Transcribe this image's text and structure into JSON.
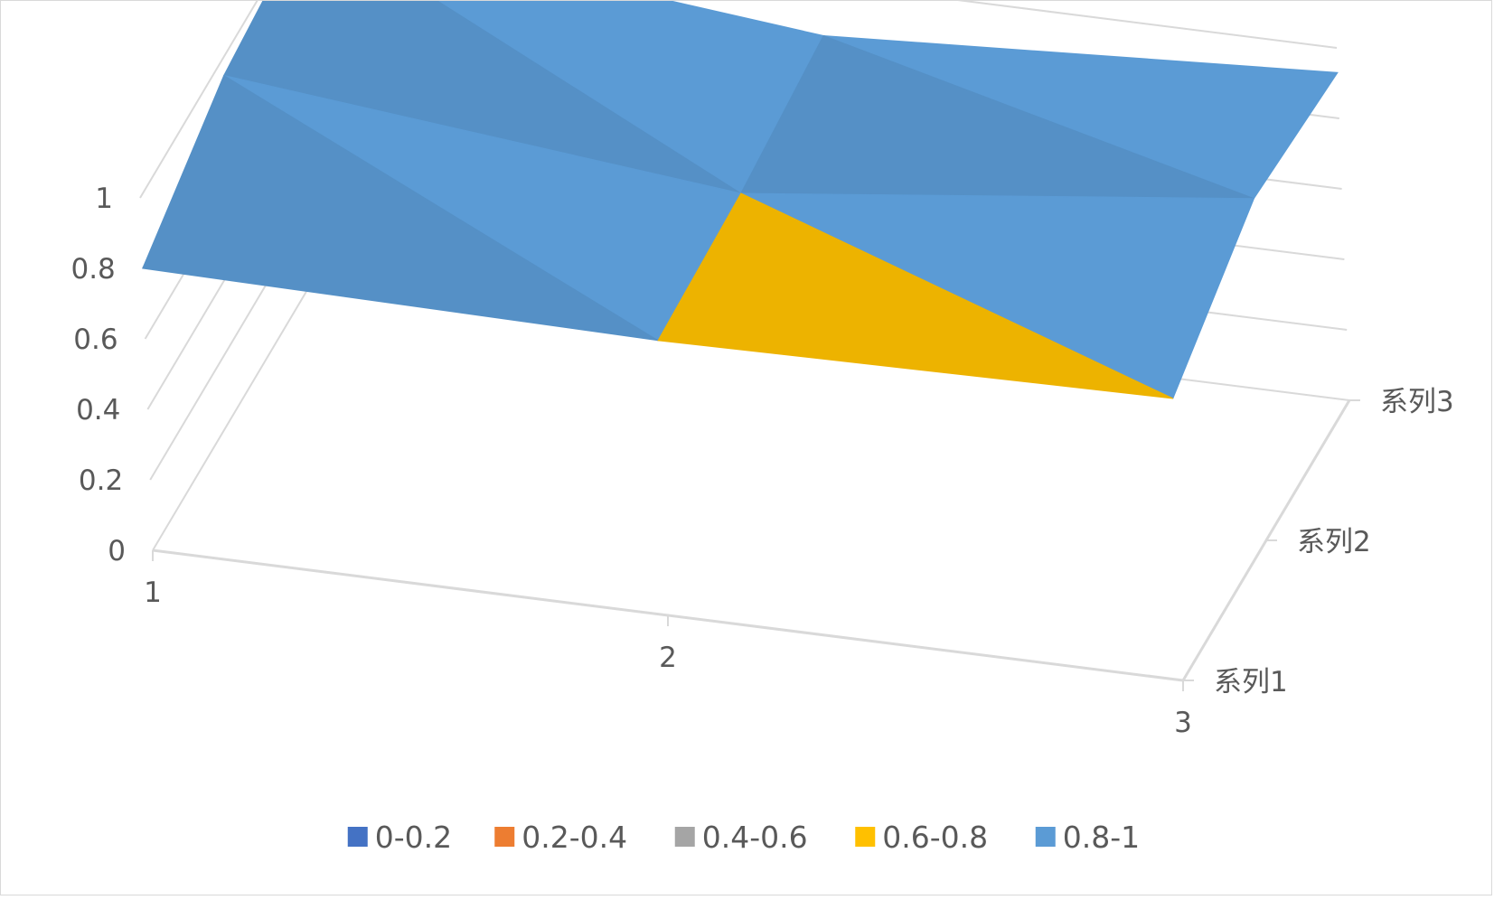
{
  "chart_data": {
    "type": "surface-3d",
    "title": "",
    "categories": [
      "1",
      "2",
      "3"
    ],
    "series_axis": [
      "系列1",
      "系列2",
      "系列3"
    ],
    "z_axis": {
      "min": 0,
      "max": 1,
      "ticks": [
        "0",
        "0.2",
        "0.4",
        "0.6",
        "0.8",
        "1"
      ]
    },
    "values": [
      [
        0.8,
        0.78,
        0.8
      ],
      [
        0.95,
        0.8,
        0.97
      ],
      [
        1.0,
        0.85,
        0.93
      ]
    ],
    "legend": {
      "placement": "bottom",
      "entries": [
        {
          "label": "0-0.2",
          "color": "#4472c4"
        },
        {
          "label": "0.2-0.4",
          "color": "#ed7d31"
        },
        {
          "label": "0.4-0.6",
          "color": "#a5a5a5"
        },
        {
          "label": "0.6-0.8",
          "color": "#ffc000"
        },
        {
          "label": "0.8-1",
          "color": "#5b9bd5"
        }
      ]
    },
    "grid": true
  }
}
